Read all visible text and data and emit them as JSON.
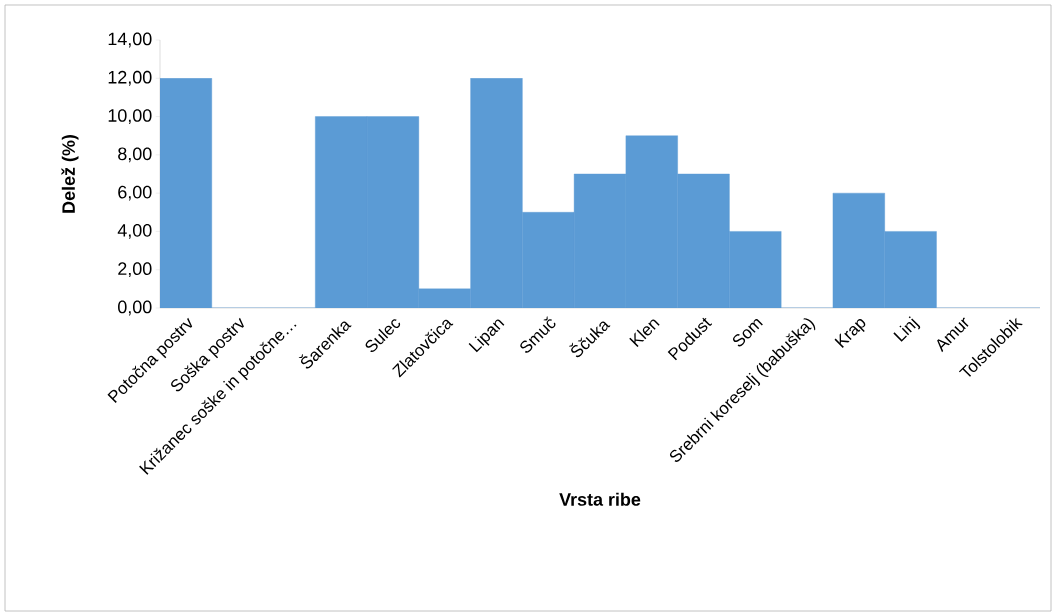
{
  "chart_data": {
    "type": "bar",
    "xlabel": "Vrsta ribe",
    "ylabel": "Delež (%)",
    "categories": [
      "Potočna postrv",
      "Soška postrv",
      "Križanec soške in potočne…",
      "Šarenka",
      "Sulec",
      "Zlatovčica",
      "Lipan",
      "Smuč",
      "Ščuka",
      "Klen",
      "Podust",
      "Som",
      "Srebrni koreselj (babuška)",
      "Krap",
      "Linj",
      "Amur",
      "Tolstolobik"
    ],
    "values": [
      12,
      0,
      0,
      10,
      10,
      1,
      12,
      5,
      7,
      9,
      7,
      4,
      0,
      6,
      4,
      0,
      0
    ],
    "color": "#5b9bd5",
    "ylim": [
      0,
      14
    ],
    "yticks": [
      {
        "value": 0,
        "label": "0,00"
      },
      {
        "value": 2,
        "label": "2,00"
      },
      {
        "value": 4,
        "label": "4,00"
      },
      {
        "value": 6,
        "label": "6,00"
      },
      {
        "value": 8,
        "label": "8,00"
      },
      {
        "value": 10,
        "label": "10,00"
      },
      {
        "value": 12,
        "label": "12,00"
      },
      {
        "value": 14,
        "label": "14,00"
      }
    ],
    "grid": false
  }
}
